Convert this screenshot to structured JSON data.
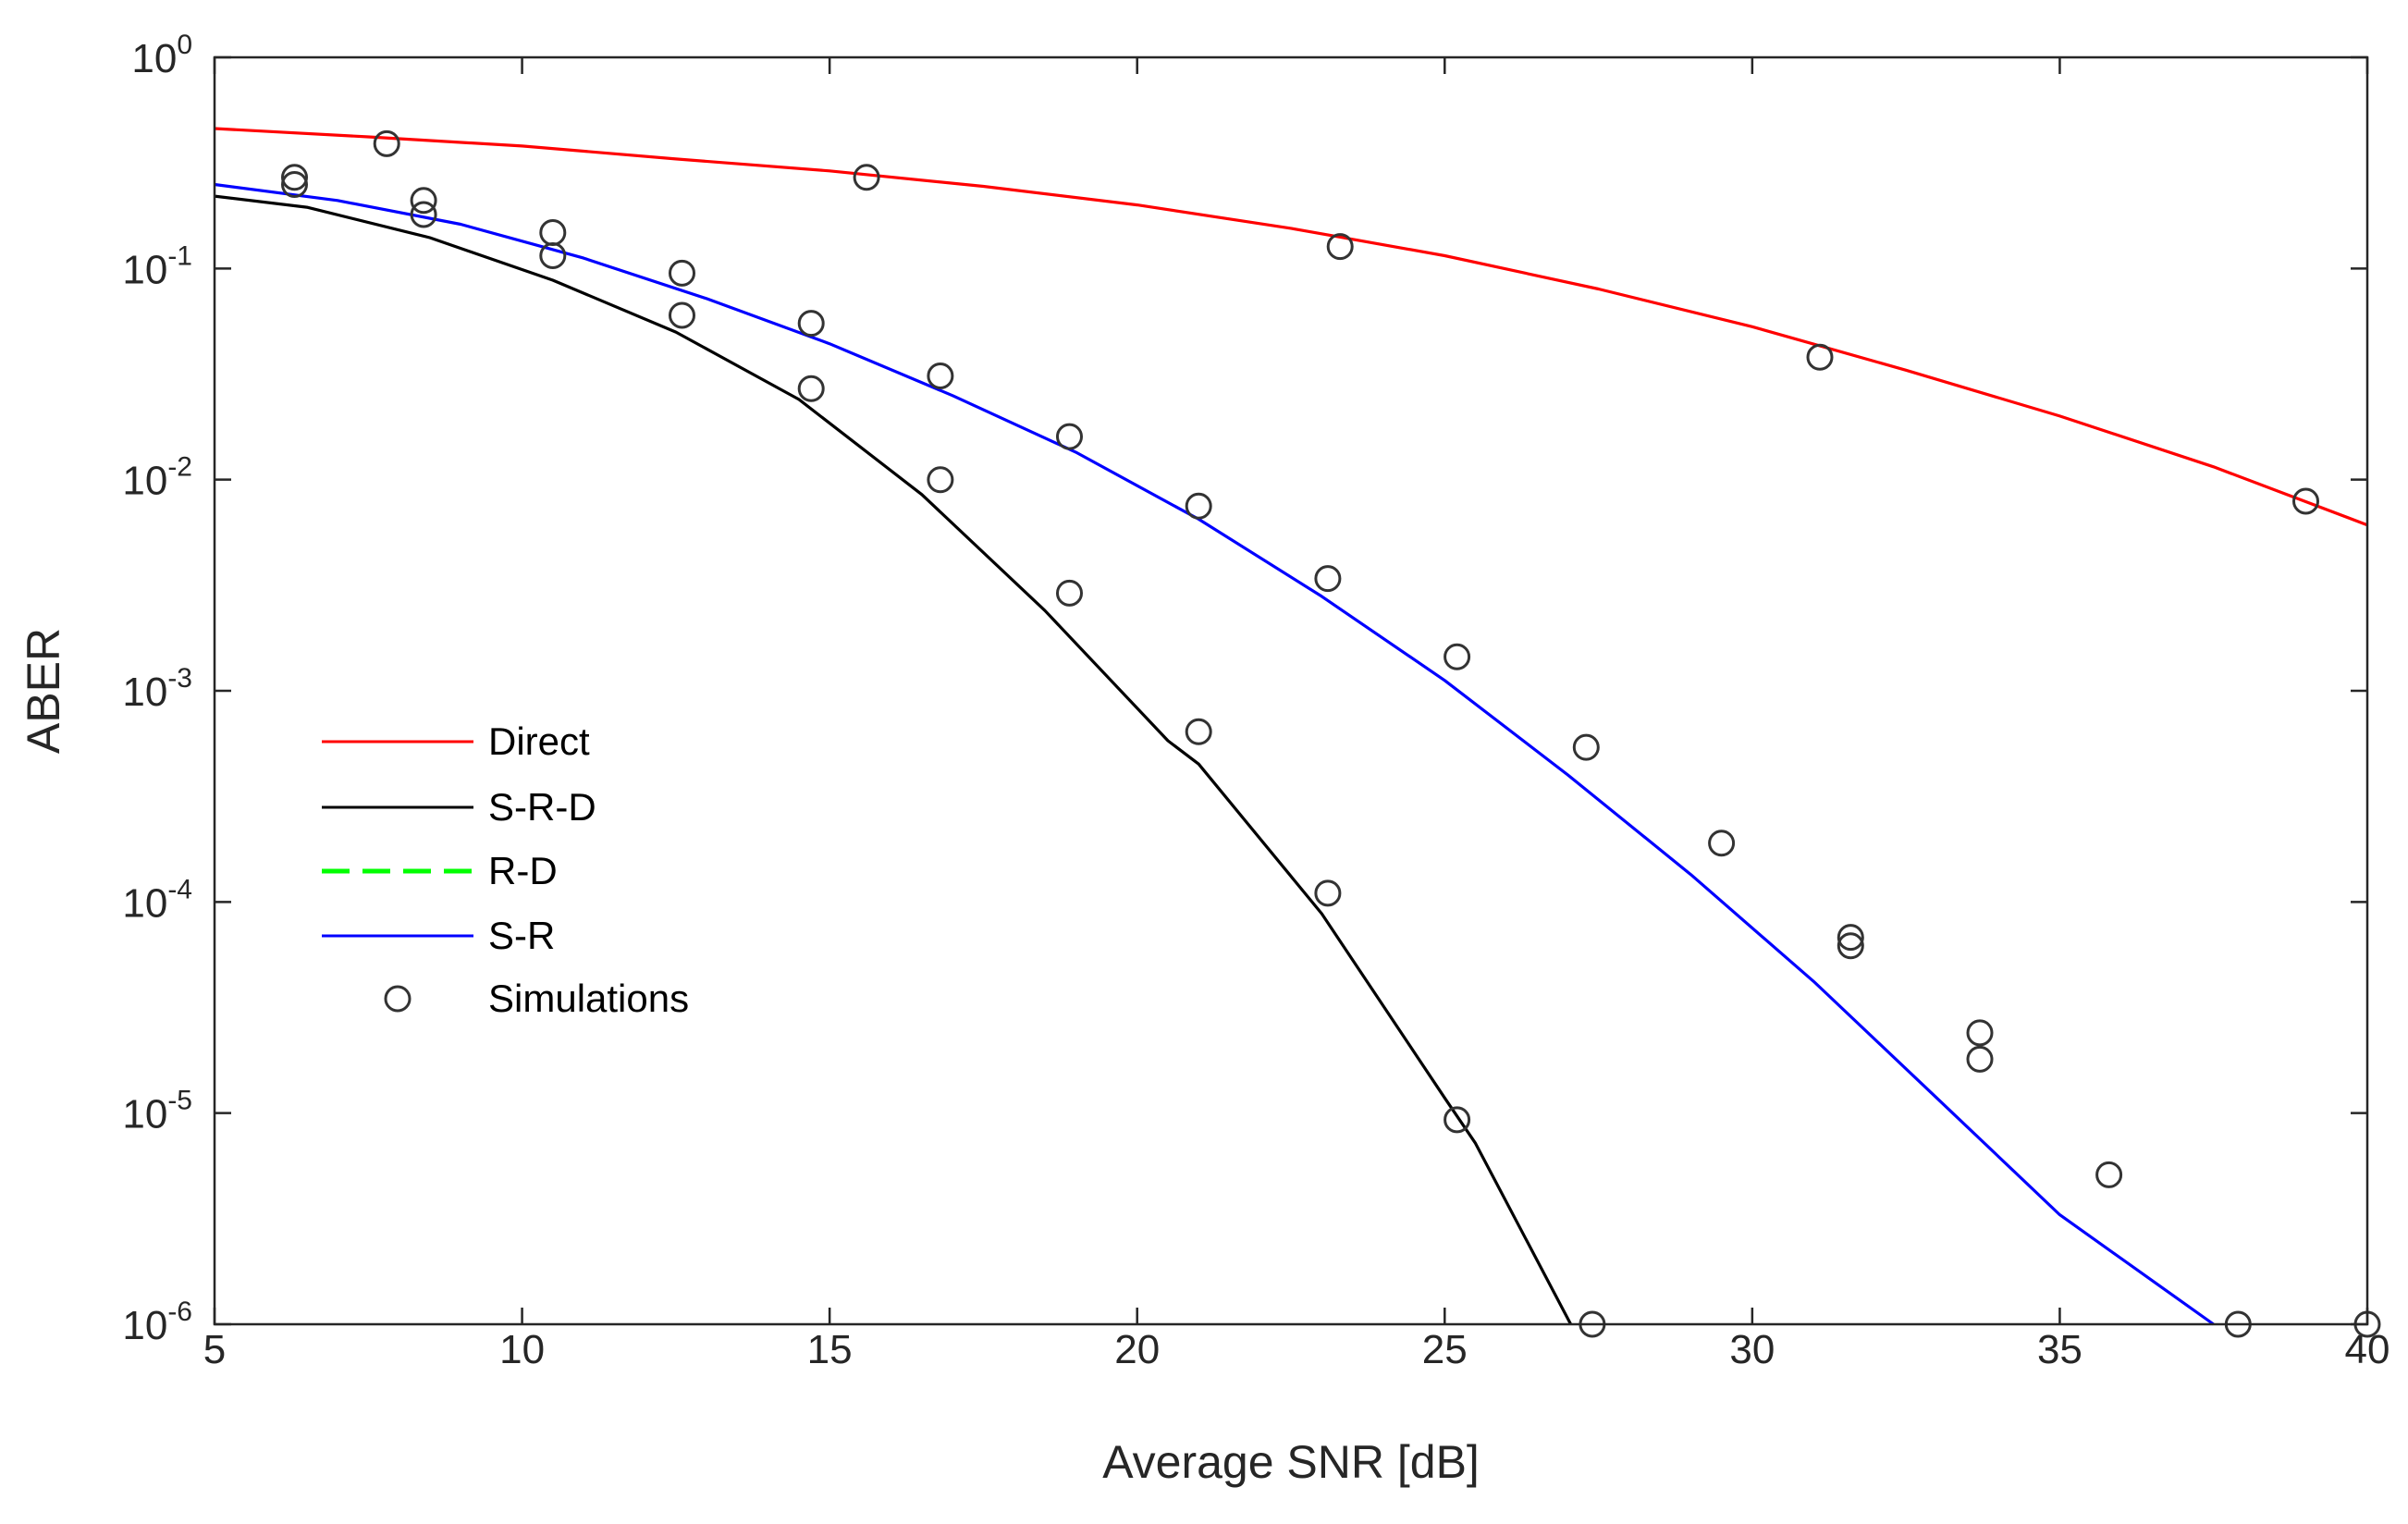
{
  "chart_data": {
    "type": "line",
    "title": "",
    "xlabel": "Average SNR [dB]",
    "ylabel": "ABER",
    "xlim": [
      5,
      40
    ],
    "ylim": [
      1e-06,
      1
    ],
    "yscale": "log",
    "grid": false,
    "legend_position": "center-left",
    "x_ticks": [
      5,
      10,
      15,
      20,
      25,
      30,
      35,
      40
    ],
    "y_ticks": [
      {
        "base": "10",
        "exp": "0",
        "value": 1
      },
      {
        "base": "10",
        "exp": "-1",
        "value": 0.1
      },
      {
        "base": "10",
        "exp": "-2",
        "value": 0.01
      },
      {
        "base": "10",
        "exp": "-3",
        "value": 0.001
      },
      {
        "base": "10",
        "exp": "-4",
        "value": 0.0001
      },
      {
        "base": "10",
        "exp": "-5",
        "value": 1e-05
      },
      {
        "base": "10",
        "exp": "-6",
        "value": 1e-06
      }
    ],
    "series": [
      {
        "name": "Direct",
        "color": "#ff0000",
        "style": "solid",
        "x": [
          5,
          7.5,
          10,
          12.5,
          15,
          17.5,
          20,
          22.5,
          25,
          27.5,
          30,
          32.5,
          35,
          37.5,
          40
        ],
        "y": [
          0.46,
          0.42,
          0.38,
          0.33,
          0.29,
          0.245,
          0.2,
          0.155,
          0.115,
          0.08,
          0.053,
          0.033,
          0.02,
          0.0115,
          0.0061
        ]
      },
      {
        "name": "S-R-D",
        "color": "#000000",
        "style": "solid",
        "x": [
          5,
          6.5,
          8.5,
          10.5,
          12.5,
          14.5,
          16.5,
          18.5,
          20.5,
          21,
          23,
          25,
          25.5,
          27.05
        ],
        "y": [
          0.22,
          0.195,
          0.14,
          0.088,
          0.05,
          0.024,
          0.0085,
          0.0024,
          0.00058,
          0.00045,
          8.8e-05,
          1.18e-05,
          7.2e-06,
          1e-06
        ]
      },
      {
        "name": "R-D",
        "color": "#00ff00",
        "style": "dashed",
        "x": [],
        "y": []
      },
      {
        "name": "S-R",
        "color": "#0000ff",
        "style": "solid",
        "x": [
          5,
          7,
          9,
          11,
          13,
          15,
          17,
          19,
          21,
          23,
          25,
          27,
          29,
          31,
          33,
          35,
          37.5
        ],
        "y": [
          0.25,
          0.21,
          0.162,
          0.112,
          0.072,
          0.044,
          0.025,
          0.0135,
          0.0065,
          0.0028,
          0.00112,
          0.0004,
          0.000135,
          4.2e-05,
          1.18e-05,
          3.3e-06,
          1e-06
        ]
      },
      {
        "name": "Simulations",
        "color": "#000000",
        "style": "markers",
        "marker": "circle",
        "x": [
          6.3,
          6.3,
          7.8,
          8.4,
          8.4,
          10.5,
          10.5,
          12.6,
          12.6,
          14.7,
          14.7,
          15.6,
          16.8,
          16.8,
          18.9,
          18.9,
          21,
          21,
          23.1,
          23.1,
          23.3,
          25.2,
          25.2,
          27.3,
          27.4,
          29.5,
          31.1,
          31.6,
          31.6,
          33.7,
          33.7,
          35.8,
          37.9,
          39,
          40
        ],
        "y": [
          0.27,
          0.25,
          0.39,
          0.21,
          0.18,
          0.148,
          0.115,
          0.095,
          0.06,
          0.055,
          0.027,
          0.27,
          0.031,
          0.01,
          0.016,
          0.0029,
          0.0075,
          0.00064,
          0.0034,
          0.00011,
          0.127,
          0.00145,
          9.3e-06,
          0.00054,
          1e-06,
          0.00019,
          0.038,
          6.8e-05,
          6.2e-05,
          2.4e-05,
          1.8e-05,
          5.1e-06,
          1e-06,
          0.0079,
          1e-06
        ]
      }
    ]
  }
}
